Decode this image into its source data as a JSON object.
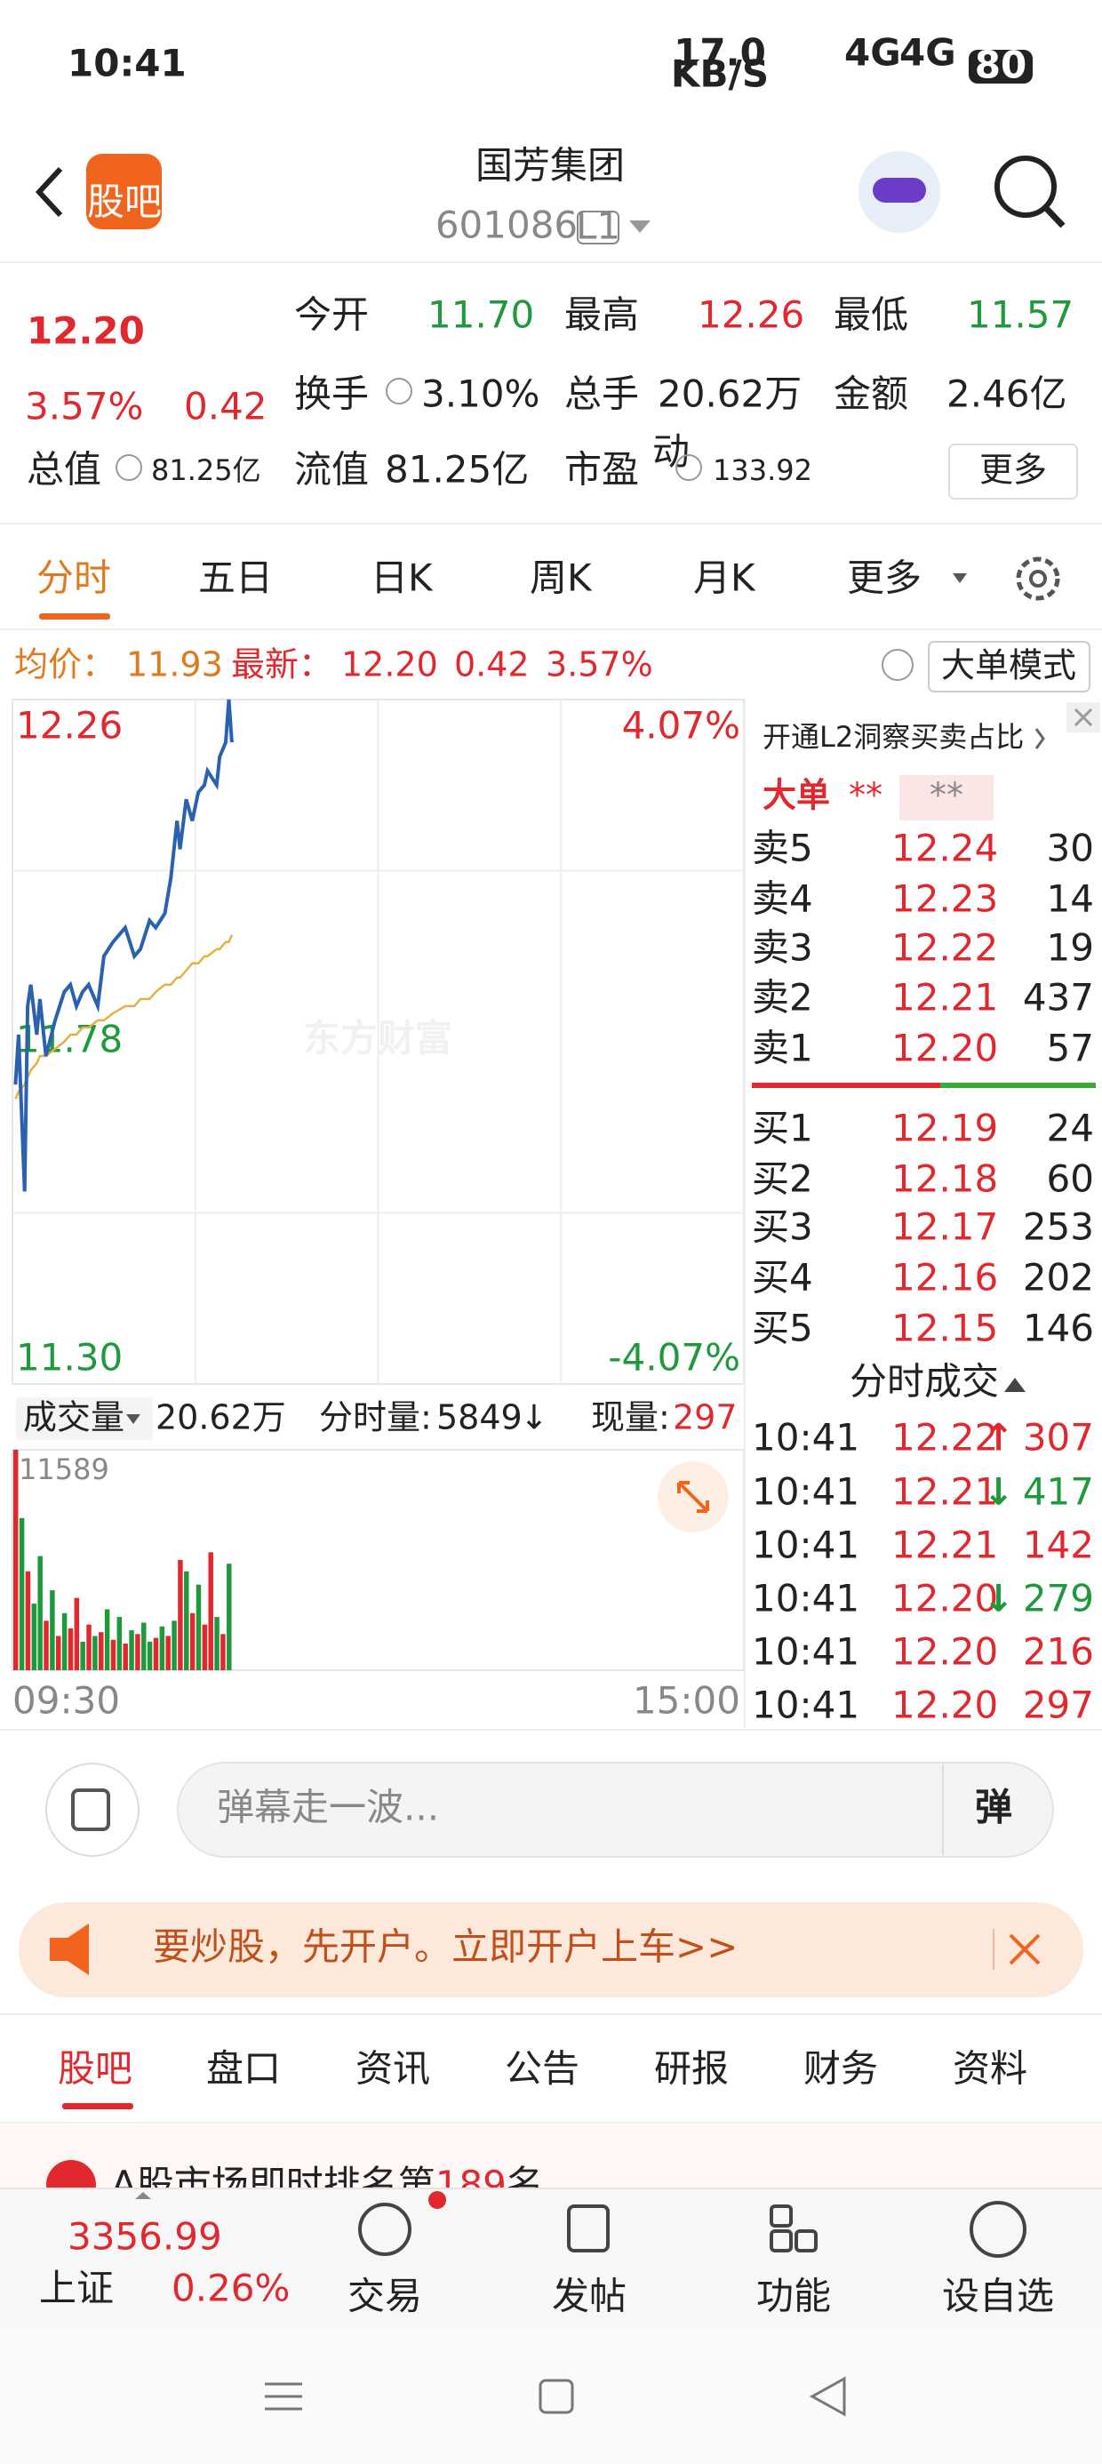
{
  "status_bar": {
    "time": "10:41",
    "speed": "17.0",
    "speed_unit": "KB/S",
    "net_1": "4G",
    "net_2": "4G",
    "battery": "80"
  },
  "header": {
    "logo": "股吧",
    "title": "国芳集团",
    "code": "601086",
    "level": "L1"
  },
  "quote": {
    "price": "12.20",
    "change_pct": "3.57%",
    "change": "0.42",
    "open_label": "今开",
    "open": "11.70",
    "high_label": "最高",
    "high": "12.26",
    "low_label": "最低",
    "low": "11.57",
    "turnover_label": "换手",
    "turnover": "3.10%",
    "volume_label": "总手",
    "volume": "20.62万",
    "amount_label": "金额",
    "amount": "2.46亿",
    "mcap_label": "总值",
    "mcap": "81.25亿",
    "float_label": "流值",
    "float_cap": "81.25亿",
    "pe_label": "市盈",
    "pe_mark": "动",
    "pe": "133.92",
    "more": "更多"
  },
  "tabs": [
    "分时",
    "五日",
    "日K",
    "周K",
    "月K",
    "更多"
  ],
  "info": {
    "avg_label": "均价：",
    "avg": "11.93",
    "last_label": "最新：",
    "last": "12.20",
    "change": "0.42",
    "change_pct": "3.57%",
    "mode": "大单模式"
  },
  "watermark": "东方财富",
  "chart_data": [
    {
      "type": "line",
      "xlim": [
        0,
        240
      ],
      "ylim": [
        11.3,
        12.26
      ],
      "yticks": [
        {
          "value": 11.3,
          "label": "11.30"
        },
        11.78,
        12.26
      ],
      "y2lim": [
        -4.07,
        4.07
      ],
      "y2ticks": [
        {
          "value": -4.07,
          "label": "-4.07%"
        },
        {
          "value": 4.07,
          "label": "4.07%"
        }
      ],
      "x": [
        1,
        2,
        4,
        5,
        6,
        8,
        9,
        11,
        14,
        17,
        19,
        21,
        23,
        25,
        28,
        30,
        33,
        37,
        40,
        42,
        45,
        47,
        50,
        52,
        54,
        55,
        57,
        59,
        61,
        63,
        64,
        67,
        68,
        70,
        71,
        72
      ],
      "series": [
        {
          "color": "#2a62b0",
          "values": [
            11.72,
            11.79,
            11.57,
            11.83,
            11.86,
            11.79,
            11.84,
            11.76,
            11.81,
            11.85,
            11.86,
            11.83,
            11.85,
            11.86,
            11.83,
            11.9,
            11.92,
            11.94,
            11.9,
            11.91,
            11.95,
            11.94,
            11.96,
            12.01,
            12.09,
            12.05,
            12.12,
            12.09,
            12.13,
            12.14,
            12.16,
            12.14,
            12.18,
            12.2,
            12.26,
            12.2
          ]
        },
        {
          "color": "#e8b040",
          "values": [
            11.7,
            11.71,
            11.72,
            11.73,
            11.74,
            11.75,
            11.76,
            11.76,
            11.77,
            11.78,
            11.79,
            11.79,
            11.8,
            11.8,
            11.81,
            11.81,
            11.82,
            11.83,
            11.83,
            11.84,
            11.84,
            11.85,
            11.86,
            11.86,
            11.87,
            11.87,
            11.88,
            11.89,
            11.89,
            11.9,
            11.9,
            11.91,
            11.91,
            11.92,
            11.92,
            11.93
          ]
        }
      ]
    },
    {
      "type": "bar",
      "xlim": [
        0,
        240
      ],
      "ylim": [
        0,
        11589
      ],
      "yticks": [
        11589
      ],
      "xticks": [
        {
          "value": 0,
          "label": "09:30"
        },
        {
          "value": 240,
          "label": "15:00"
        }
      ],
      "x": [
        0,
        2,
        4,
        6,
        8,
        10,
        12,
        14,
        16,
        18,
        20,
        22,
        24,
        26,
        28,
        30,
        32,
        34,
        36,
        38,
        40,
        42,
        44,
        46,
        48,
        50,
        52,
        54,
        56,
        58,
        60,
        62,
        64,
        66,
        68,
        70
      ],
      "values": [
        11589,
        8000,
        5200,
        3500,
        6000,
        2600,
        4200,
        1800,
        3000,
        2200,
        3800,
        1500,
        2400,
        1800,
        2000,
        3200,
        1600,
        2800,
        1400,
        2100,
        1900,
        2500,
        1500,
        1700,
        2300,
        1800,
        2600,
        5800,
        5200,
        3000,
        4500,
        2400,
        6200,
        2800,
        1900,
        5600
      ],
      "colors": [
        "#e0282e",
        "#1e9a3c",
        "#e0282e",
        "#1e9a3c",
        "#1e9a3c",
        "#e0282e",
        "#1e9a3c",
        "#e0282e",
        "#1e9a3c",
        "#e0282e",
        "#e0282e",
        "#1e9a3c",
        "#e0282e",
        "#1e9a3c",
        "#e0282e",
        "#1e9a3c",
        "#e0282e",
        "#1e9a3c",
        "#e0282e",
        "#1e9a3c",
        "#e0282e",
        "#1e9a3c",
        "#1e9a3c",
        "#e0282e",
        "#1e9a3c",
        "#e0282e",
        "#1e9a3c",
        "#e0282e",
        "#1e9a3c",
        "#e0282e",
        "#1e9a3c",
        "#e0282e",
        "#e0282e",
        "#1e9a3c",
        "#e0282e",
        "#1e9a3c"
      ]
    }
  ],
  "volume_bar": {
    "menu": "成交量",
    "total": "20.62万",
    "minute_label": "分时量:",
    "minute": "5849",
    "minute_dir": "↓",
    "current_label": "现量:",
    "current": "297"
  },
  "order_book": {
    "promo": "开通L2洞察买卖占比",
    "big_label": "大单",
    "big_value": "**",
    "big_value_2": "**",
    "asks": [
      [
        "卖5",
        "12.24",
        "30"
      ],
      [
        "卖4",
        "12.23",
        "14"
      ],
      [
        "卖3",
        "12.22",
        "19"
      ],
      [
        "卖2",
        "12.21",
        "437"
      ],
      [
        "卖1",
        "12.20",
        "57"
      ]
    ],
    "bids": [
      [
        "买1",
        "12.19",
        "24"
      ],
      [
        "买2",
        "12.18",
        "60"
      ],
      [
        "买3",
        "12.17",
        "253"
      ],
      [
        "买4",
        "12.16",
        "202"
      ],
      [
        "买5",
        "12.15",
        "146"
      ]
    ],
    "trades_title": "分时成交",
    "trades": [
      {
        "time": "10:41",
        "price": "12.22",
        "dir": "↑",
        "volume": "307"
      },
      {
        "time": "10:41",
        "price": "12.21",
        "dir": "↓",
        "volume": "417"
      },
      {
        "time": "10:41",
        "price": "12.21",
        "volume": "142"
      },
      {
        "time": "10:41",
        "price": "12.20",
        "dir": "↓",
        "volume": "279"
      },
      {
        "time": "10:41",
        "price": "12.20",
        "volume": "216"
      },
      {
        "time": "10:41",
        "price": "12.20",
        "volume": "297"
      }
    ]
  },
  "comment": {
    "placeholder": "弹幕走一波...",
    "button": "弹"
  },
  "banner": {
    "text": "要炒股，先开户。立即开户上车>>"
  },
  "feed_tabs": [
    "股吧",
    "盘口",
    "资讯",
    "公告",
    "研报",
    "财务",
    "资料"
  ],
  "news": {
    "prefix": "A股市场即时排名第",
    "rank": "189",
    "suffix": "名"
  },
  "bottom_nav": {
    "index_value": "3356.99",
    "index_name": "上证",
    "index_change": "0.26%",
    "items": [
      "交易",
      "发帖",
      "功能",
      "设自选"
    ]
  }
}
